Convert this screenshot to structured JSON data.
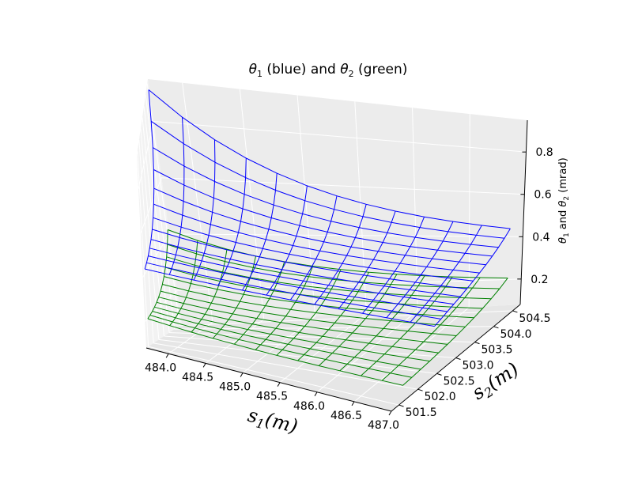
{
  "chart_data": {
    "type": "surface3d-wireframe",
    "title_parts": {
      "t1": "θ",
      "s1": "1",
      "mid": " (blue) and ",
      "t2": "θ",
      "s2": "2",
      "end": " (green)"
    },
    "xlabel_parts": {
      "base": "s",
      "sub": "1",
      "rest": "(m)"
    },
    "ylabel_parts": {
      "base": "s",
      "sub": "2",
      "rest": "(m)"
    },
    "zlabel_parts": {
      "t1": "θ",
      "s1": "1",
      "mid": " and ",
      "t2": "θ",
      "s2": "2",
      "end": " (mrad)"
    },
    "x_ticks": [
      "484.0",
      "484.5",
      "485.0",
      "485.5",
      "486.0",
      "486.5",
      "487.0"
    ],
    "y_ticks": [
      "501.5",
      "502.0",
      "502.5",
      "503.0",
      "503.5",
      "504.0",
      "504.5"
    ],
    "z_ticks": [
      "0.2",
      "0.4",
      "0.6",
      "0.8"
    ],
    "xlim": [
      483.7,
      487.0
    ],
    "ylim": [
      501.3,
      504.7
    ],
    "zlim": [
      0.08,
      0.95
    ],
    "grid": true,
    "series": [
      {
        "label": "θ1",
        "color": "#0000ff",
        "x_range": [
          483.7,
          486.9
        ],
        "y_range": [
          501.6,
          504.6
        ],
        "z_corner_high": 0.92,
        "z_corner_far": 0.42,
        "z_corner_near": 0.45,
        "z_corner_low": 0.38
      },
      {
        "label": "θ2",
        "color": "#008000",
        "x_range": [
          483.7,
          486.9
        ],
        "y_range": [
          501.6,
          504.6
        ],
        "z_corner_high": 0.42,
        "z_corner_far": 0.2,
        "z_corner_near": 0.22,
        "z_corner_low": 0.14
      }
    ]
  }
}
